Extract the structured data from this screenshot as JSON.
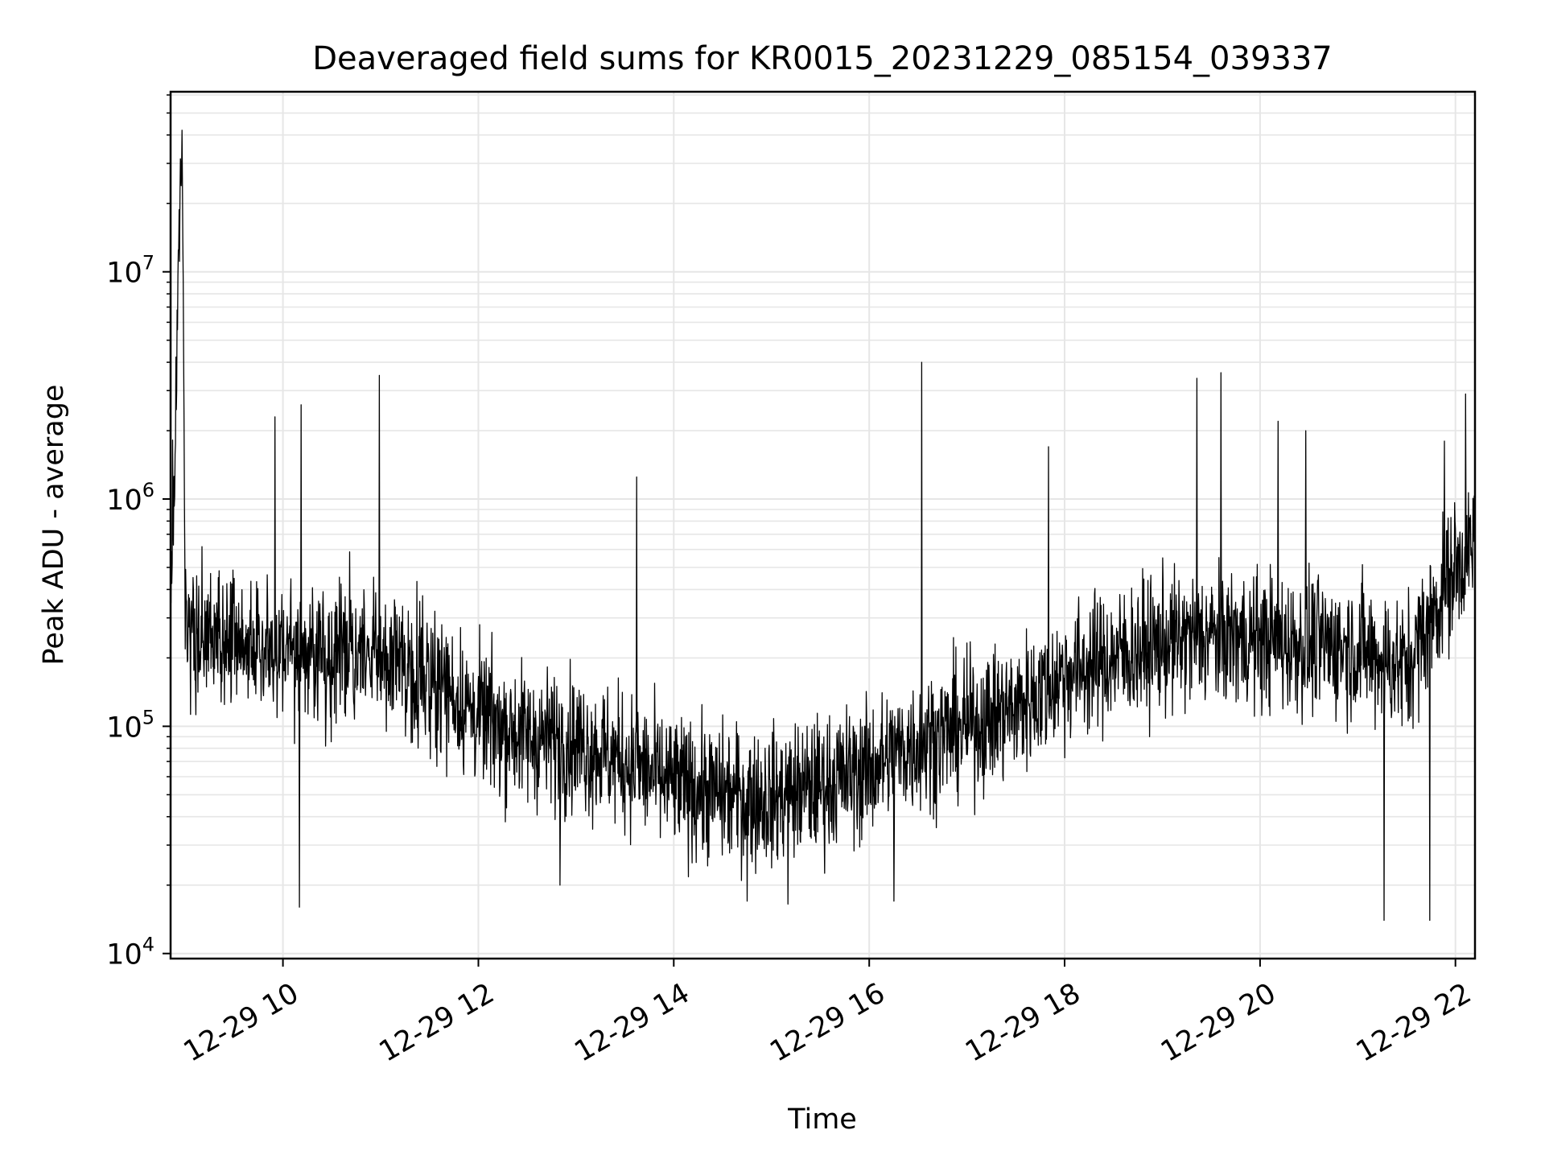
{
  "chart_data": {
    "type": "line",
    "title": "Deaveraged field sums for KR0015_20231229_085154_039337",
    "xlabel": "Time",
    "ylabel": "Peak ADU - average",
    "yscale": "log",
    "ylim": [
      9500,
      62000000
    ],
    "xlim": [
      "2023-12-29 08:51",
      "2023-12-29 22:12"
    ],
    "x_ticks": [
      "12-29 10",
      "12-29 12",
      "12-29 14",
      "12-29 16",
      "12-29 18",
      "12-29 20",
      "12-29 22"
    ],
    "y_ticks": [
      {
        "base": "10",
        "exp": "4",
        "value": 10000
      },
      {
        "base": "10",
        "exp": "5",
        "value": 100000
      },
      {
        "base": "10",
        "exp": "6",
        "value": 1000000
      },
      {
        "base": "10",
        "exp": "7",
        "value": 10000000
      }
    ],
    "grid": true,
    "line_color": "#000000",
    "series": [
      {
        "x": [
          "2023-12-29 08:51",
          "2023-12-29 08:58",
          "2023-12-29 09:00",
          "2023-12-29 09:30",
          "2023-12-29 10:00",
          "2023-12-29 10:30",
          "2023-12-29 11:00",
          "2023-12-29 11:30",
          "2023-12-29 12:00",
          "2023-12-29 12:30",
          "2023-12-29 13:00",
          "2023-12-29 13:30",
          "2023-12-29 14:00",
          "2023-12-29 14:30",
          "2023-12-29 15:00",
          "2023-12-29 15:30",
          "2023-12-29 16:00",
          "2023-12-29 16:30",
          "2023-12-29 17:00",
          "2023-12-29 17:30",
          "2023-12-29 18:00",
          "2023-12-29 18:30",
          "2023-12-29 19:00",
          "2023-12-29 19:30",
          "2023-12-29 20:00",
          "2023-12-29 20:30",
          "2023-12-29 21:00",
          "2023-12-29 21:30",
          "2023-12-29 22:00",
          "2023-12-29 22:12"
        ],
        "values": [
          280000,
          42000000,
          250000,
          230000,
          220000,
          210000,
          200000,
          170000,
          110000,
          90000,
          85000,
          70000,
          55000,
          50000,
          48000,
          55000,
          65000,
          85000,
          100000,
          120000,
          170000,
          200000,
          230000,
          250000,
          240000,
          230000,
          220000,
          180000,
          500000,
          600000
        ],
        "variability_decades": 0.45,
        "spikes": [
          {
            "x": "2023-12-29 09:55",
            "value": 2300000
          },
          {
            "x": "2023-12-29 10:11",
            "value": 2600000
          },
          {
            "x": "2023-12-29 10:59",
            "value": 3500000
          },
          {
            "x": "2023-12-29 10:10",
            "value": 16000
          },
          {
            "x": "2023-12-29 13:37",
            "value": 1250000
          },
          {
            "x": "2023-12-29 12:50",
            "value": 20000
          },
          {
            "x": "2023-12-29 14:45",
            "value": 17000
          },
          {
            "x": "2023-12-29 15:10",
            "value": 16500
          },
          {
            "x": "2023-12-29 16:32",
            "value": 4000000
          },
          {
            "x": "2023-12-29 16:15",
            "value": 17000
          },
          {
            "x": "2023-12-29 17:50",
            "value": 1700000
          },
          {
            "x": "2023-12-29 19:21",
            "value": 3400000
          },
          {
            "x": "2023-12-29 19:36",
            "value": 3600000
          },
          {
            "x": "2023-12-29 20:11",
            "value": 2200000
          },
          {
            "x": "2023-12-29 20:28",
            "value": 2000000
          },
          {
            "x": "2023-12-29 21:16",
            "value": 14000
          },
          {
            "x": "2023-12-29 21:44",
            "value": 14000
          },
          {
            "x": "2023-12-29 21:53",
            "value": 1800000
          },
          {
            "x": "2023-12-29 22:06",
            "value": 2900000
          }
        ]
      }
    ]
  }
}
